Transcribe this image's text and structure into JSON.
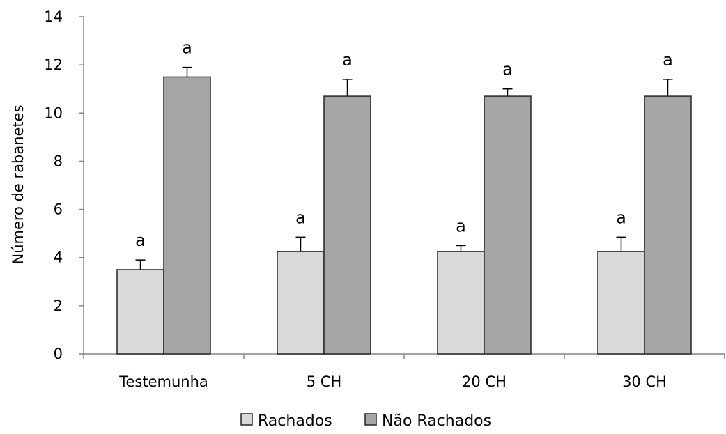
{
  "chart_data": {
    "type": "bar",
    "title": "",
    "xlabel": "",
    "ylabel": "Número de rabanetes",
    "ylim": [
      0,
      14
    ],
    "yticks": [
      0,
      2,
      4,
      6,
      8,
      10,
      12,
      14
    ],
    "grid": false,
    "legend_position": "bottom",
    "categories": [
      "Testemunha",
      "5 CH",
      "20 CH",
      "30 CH"
    ],
    "series": [
      {
        "name": "Rachados",
        "color": "#d9d9d9",
        "values": [
          3.5,
          4.25,
          4.25,
          4.25
        ],
        "errors": [
          0.4,
          0.6,
          0.25,
          0.6
        ],
        "labels": [
          "a",
          "a",
          "a",
          "a"
        ]
      },
      {
        "name": "Não Rachados",
        "color": "#a6a6a6",
        "values": [
          11.5,
          10.7,
          10.7,
          10.7
        ],
        "errors": [
          0.4,
          0.7,
          0.3,
          0.7
        ],
        "labels": [
          "a",
          "a",
          "a",
          "a"
        ]
      }
    ]
  }
}
